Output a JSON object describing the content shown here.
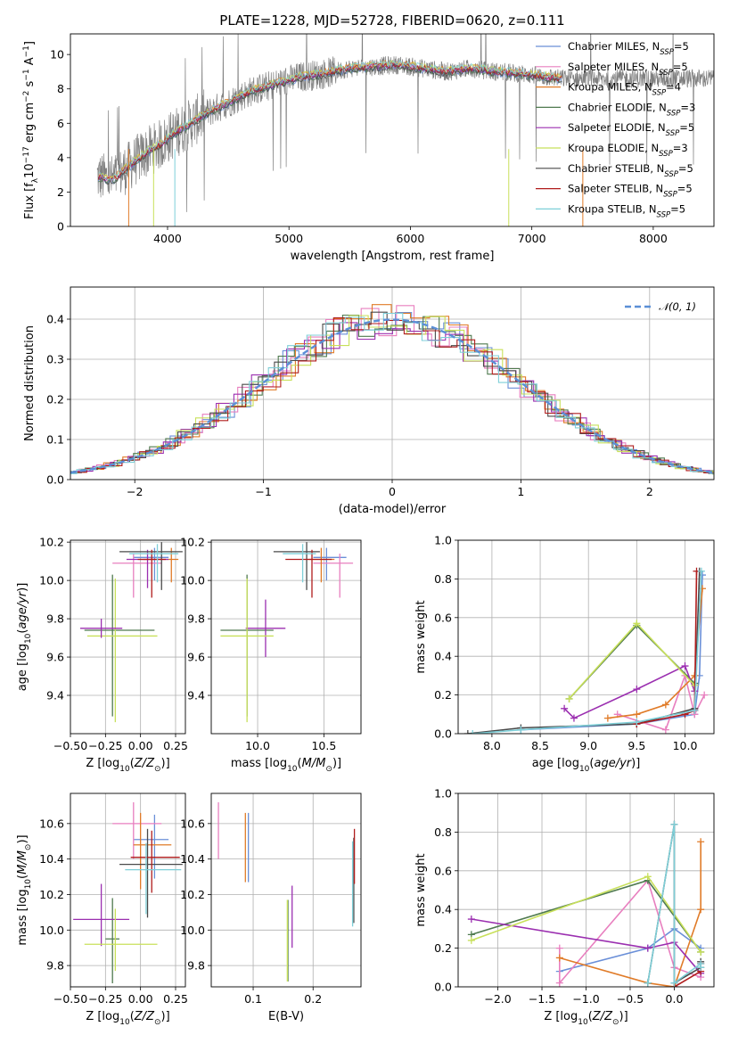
{
  "figure": {
    "title": "PLATE=1228, MJD=52728, FIBERID=0620, z=0.111"
  },
  "colors": {
    "Chabrier MILES": "#6a8fd8",
    "Salpeter MILES": "#e87fbf",
    "Kroupa MILES": "#e07b28",
    "Chabrier ELODIE": "#4f7a4f",
    "Salpeter ELODIE": "#9b2fb0",
    "Kroupa ELODIE": "#c8e05a",
    "Chabrier STELIB": "#4a4a4a",
    "Salpeter STELIB": "#b01c1c",
    "Kroupa STELIB": "#7ecfd8",
    "data": "#808080",
    "normal": "#5b8fd6"
  },
  "chart_data": [
    {
      "id": "spectrum",
      "type": "line",
      "xlabel": "wavelength [Angstrom, rest frame]",
      "ylabel": "Flux [f_λ10^-17 erg cm^-2 s^-1 A^-1]",
      "xlim": [
        3200,
        8500
      ],
      "ylim": [
        0,
        11.2
      ],
      "xticks": [
        4000,
        5000,
        6000,
        7000,
        8000
      ],
      "yticks": [
        0,
        2,
        4,
        6,
        8,
        10
      ],
      "legend_position": "top-right",
      "legend": [
        {
          "model": "Chabrier MILES",
          "nssp": "5"
        },
        {
          "model": "Salpeter MILES",
          "nssp": "5"
        },
        {
          "model": "Kroupa MILES",
          "nssp": "4"
        },
        {
          "model": "Chabrier ELODIE",
          "nssp": "3"
        },
        {
          "model": "Salpeter ELODIE",
          "nssp": "5"
        },
        {
          "model": "Kroupa ELODIE",
          "nssp": "3"
        },
        {
          "model": "Chabrier STELIB",
          "nssp": "5"
        },
        {
          "model": "Salpeter STELIB",
          "nssp": "5"
        },
        {
          "model": "Kroupa STELIB",
          "nssp": "5"
        }
      ],
      "continuum": {
        "x": [
          3420,
          3550,
          3650,
          3750,
          3850,
          3950,
          4050,
          4150,
          4300,
          4500,
          4700,
          4900,
          5100,
          5300,
          5500,
          5700,
          5900,
          6100,
          6300,
          6500,
          6700,
          6900,
          7100,
          7250
        ],
        "y": [
          2.9,
          2.7,
          3.3,
          3.9,
          4.4,
          4.8,
          5.4,
          5.8,
          6.5,
          7.2,
          7.9,
          8.3,
          8.7,
          8.9,
          9.2,
          9.3,
          9.4,
          9.2,
          9.0,
          9.2,
          9.0,
          8.9,
          8.7,
          8.6
        ]
      }
    },
    {
      "id": "residuals",
      "type": "line",
      "xlabel": "(data-model)/error",
      "ylabel": "Normed distribution",
      "xlim": [
        -2.5,
        2.5
      ],
      "ylim": [
        0,
        0.48
      ],
      "xticks": [
        -2,
        -1,
        0,
        1,
        2
      ],
      "yticks": [
        0.0,
        0.1,
        0.2,
        0.3,
        0.4
      ],
      "legend_position": "top-right",
      "legend_label": "N(0,1)"
    },
    {
      "id": "age_vs_Z",
      "type": "scatter",
      "xlabel": "Z [log10(Z/Z⊙)]",
      "ylabel": "age [log10(age/yr)]",
      "xlim": [
        -0.5,
        0.32
      ],
      "ylim": [
        9.2,
        10.21
      ],
      "xticks": [
        -0.5,
        -0.25,
        0.0,
        0.25
      ],
      "yticks": [
        9.4,
        9.6,
        9.8,
        10.0,
        10.2
      ],
      "points": [
        {
          "model": "Chabrier MILES",
          "x": 0.1,
          "xerr": [
            0.15,
            0.1
          ],
          "y": 10.12,
          "yerr": [
            0.12,
            0.05
          ]
        },
        {
          "model": "Salpeter MILES",
          "x": -0.05,
          "xerr": [
            0.15,
            0.2
          ],
          "y": 10.09,
          "yerr": [
            0.18,
            0.05
          ]
        },
        {
          "model": "Kroupa MILES",
          "x": 0.22,
          "xerr": [
            0.2,
            0.05
          ],
          "y": 10.11,
          "yerr": [
            0.12,
            0.06
          ]
        },
        {
          "model": "Chabrier ELODIE",
          "x": -0.2,
          "xerr": [
            0.2,
            0.3
          ],
          "y": 9.74,
          "yerr": [
            0.45,
            0.29
          ]
        },
        {
          "model": "Salpeter ELODIE",
          "x": 0.05,
          "xerr": [
            0.15,
            0.15
          ],
          "y": 10.11,
          "yerr": [
            0.15,
            0.05
          ]
        },
        {
          "model": "Kroupa ELODIE",
          "x": -0.18,
          "xerr": [
            0.2,
            0.3
          ],
          "y": 9.71,
          "yerr": [
            0.45,
            0.3
          ]
        },
        {
          "model": "Chabrier STELIB",
          "x": 0.15,
          "xerr": [
            0.3,
            0.15
          ],
          "y": 10.15,
          "yerr": [
            0.2,
            0.05
          ]
        },
        {
          "model": "Salpeter STELIB",
          "x": 0.08,
          "xerr": [
            0.1,
            0.1
          ],
          "y": 10.11,
          "yerr": [
            0.2,
            0.05
          ]
        },
        {
          "model": "Kroupa STELIB",
          "x": 0.12,
          "xerr": [
            0.2,
            0.15
          ],
          "y": 10.14,
          "yerr": [
            0.15,
            0.05
          ]
        },
        {
          "model": "Salpeter ELODIE",
          "x": -0.28,
          "xerr": [
            0.15,
            0.15
          ],
          "y": 9.75,
          "yerr": [
            0.05,
            0.05
          ]
        }
      ]
    },
    {
      "id": "age_vs_mass",
      "type": "scatter",
      "xlabel": "mass [log10(M/M⊙)]",
      "xlim": [
        9.65,
        10.78
      ],
      "ylim": [
        9.2,
        10.21
      ],
      "xticks": [
        10.0,
        10.5
      ],
      "yticks": [
        9.4,
        9.6,
        9.8,
        10.0,
        10.2
      ],
      "points": [
        {
          "model": "Chabrier MILES",
          "x": 10.52,
          "xerr": [
            0.1,
            0.15
          ],
          "y": 10.12,
          "yerr": [
            0.12,
            0.05
          ]
        },
        {
          "model": "Salpeter MILES",
          "x": 10.62,
          "xerr": [
            0.2,
            0.1
          ],
          "y": 10.09,
          "yerr": [
            0.18,
            0.05
          ]
        },
        {
          "model": "Kroupa MILES",
          "x": 10.48,
          "xerr": [
            0.1,
            0.1
          ],
          "y": 10.11,
          "yerr": [
            0.12,
            0.06
          ]
        },
        {
          "model": "Chabrier ELODIE",
          "x": 9.92,
          "xerr": [
            0.2,
            0.2
          ],
          "y": 9.74,
          "yerr": [
            0.45,
            0.29
          ]
        },
        {
          "model": "Salpeter ELODIE",
          "x": 10.06,
          "xerr": [
            0.15,
            0.15
          ],
          "y": 9.75,
          "yerr": [
            0.15,
            0.15
          ]
        },
        {
          "model": "Kroupa ELODIE",
          "x": 9.92,
          "xerr": [
            0.2,
            0.2
          ],
          "y": 9.71,
          "yerr": [
            0.45,
            0.3
          ]
        },
        {
          "model": "Chabrier STELIB",
          "x": 10.37,
          "xerr": [
            0.25,
            0.1
          ],
          "y": 10.15,
          "yerr": [
            0.2,
            0.05
          ]
        },
        {
          "model": "Salpeter STELIB",
          "x": 10.41,
          "xerr": [
            0.2,
            0.15
          ],
          "y": 10.11,
          "yerr": [
            0.2,
            0.05
          ]
        },
        {
          "model": "Kroupa STELIB",
          "x": 10.34,
          "xerr": [
            0.15,
            0.1
          ],
          "y": 10.14,
          "yerr": [
            0.15,
            0.05
          ]
        }
      ]
    },
    {
      "id": "weight_vs_age",
      "type": "line",
      "xlabel": "age [log10(age/yr)]",
      "ylabel": "mass weight",
      "xlim": [
        7.65,
        10.3
      ],
      "ylim": [
        0,
        1
      ],
      "xticks": [
        8.0,
        8.5,
        9.0,
        9.5,
        10.0
      ],
      "yticks": [
        0.0,
        0.2,
        0.4,
        0.6,
        0.8,
        1.0
      ],
      "series": [
        {
          "model": "Chabrier MILES",
          "x": [
            8.3,
            9.5,
            10.1,
            10.15,
            10.18
          ],
          "y": [
            0.02,
            0.05,
            0.1,
            0.3,
            0.82
          ]
        },
        {
          "model": "Salpeter MILES",
          "x": [
            9.3,
            9.8,
            10.0,
            10.1,
            10.2
          ],
          "y": [
            0.1,
            0.02,
            0.3,
            0.1,
            0.2
          ]
        },
        {
          "model": "Kroupa MILES",
          "x": [
            9.2,
            9.5,
            9.8,
            10.1,
            10.18
          ],
          "y": [
            0.08,
            0.1,
            0.15,
            0.3,
            0.75
          ]
        },
        {
          "model": "Chabrier ELODIE",
          "x": [
            8.8,
            9.5,
            10.1
          ],
          "y": [
            0.18,
            0.56,
            0.26
          ]
        },
        {
          "model": "Salpeter ELODIE",
          "x": [
            8.75,
            8.85,
            9.5,
            10.0,
            10.1
          ],
          "y": [
            0.13,
            0.08,
            0.23,
            0.35,
            0.22
          ]
        },
        {
          "model": "Kroupa ELODIE",
          "x": [
            8.8,
            9.5,
            10.1
          ],
          "y": [
            0.18,
            0.57,
            0.25
          ]
        },
        {
          "model": "Chabrier STELIB",
          "x": [
            7.75,
            8.3,
            9.5,
            10.1,
            10.15
          ],
          "y": [
            0.0,
            0.03,
            0.05,
            0.13,
            0.84
          ]
        },
        {
          "model": "Salpeter STELIB",
          "x": [
            9.5,
            10.0,
            10.1,
            10.12
          ],
          "y": [
            0.05,
            0.1,
            0.12,
            0.84
          ]
        },
        {
          "model": "Kroupa STELIB",
          "x": [
            7.8,
            8.3,
            9.5,
            10.1,
            10.17
          ],
          "y": [
            0.0,
            0.02,
            0.06,
            0.12,
            0.84
          ]
        }
      ]
    },
    {
      "id": "mass_vs_Z",
      "type": "scatter",
      "xlabel": "Z [log10(Z/Z⊙)]",
      "ylabel": "mass [log10(M/M⊙)]",
      "xlim": [
        -0.5,
        0.32
      ],
      "ylim": [
        9.68,
        10.77
      ],
      "xticks": [
        -0.5,
        -0.25,
        0.0,
        0.25
      ],
      "yticks": [
        9.8,
        10.0,
        10.2,
        10.4,
        10.6
      ],
      "points": [
        {
          "model": "Chabrier MILES",
          "x": 0.1,
          "xerr": [
            0.15,
            0.1
          ],
          "y": 10.51,
          "yerr": [
            0.22,
            0.14
          ]
        },
        {
          "model": "Salpeter MILES",
          "x": -0.05,
          "xerr": [
            0.15,
            0.2
          ],
          "y": 10.6,
          "yerr": [
            0.2,
            0.12
          ]
        },
        {
          "model": "Kroupa MILES",
          "x": 0.0,
          "xerr": [
            0.05,
            0.22
          ],
          "y": 10.48,
          "yerr": [
            0.25,
            0.18
          ]
        },
        {
          "model": "Chabrier ELODIE",
          "x": -0.2,
          "xerr": [
            0.05,
            0.05
          ],
          "y": 9.95,
          "yerr": [
            0.25,
            0.23
          ]
        },
        {
          "model": "Salpeter ELODIE",
          "x": -0.28,
          "xerr": [
            0.2,
            0.2
          ],
          "y": 10.06,
          "yerr": [
            0.15,
            0.2
          ]
        },
        {
          "model": "Kroupa ELODIE",
          "x": -0.18,
          "xerr": [
            0.22,
            0.3
          ],
          "y": 9.92,
          "yerr": [
            0.15,
            0.2
          ]
        },
        {
          "model": "Chabrier STELIB",
          "x": 0.05,
          "xerr": [
            0.2,
            0.25
          ],
          "y": 10.37,
          "yerr": [
            0.3,
            0.2
          ]
        },
        {
          "model": "Salpeter STELIB",
          "x": 0.08,
          "xerr": [
            0.15,
            0.2
          ],
          "y": 10.41,
          "yerr": [
            0.2,
            0.15
          ]
        },
        {
          "model": "Kroupa STELIB",
          "x": 0.04,
          "xerr": [
            0.15,
            0.25
          ],
          "y": 10.34,
          "yerr": [
            0.25,
            0.15
          ]
        }
      ]
    },
    {
      "id": "mass_vs_ebv",
      "type": "scatter",
      "xlabel": "E(B-V)",
      "xlim": [
        0.03,
        0.28
      ],
      "ylim": [
        9.68,
        10.77
      ],
      "xticks": [
        0.1,
        0.2
      ],
      "yticks": [
        9.8,
        10.0,
        10.2,
        10.4,
        10.6
      ],
      "points": [
        {
          "model": "Chabrier MILES",
          "x": 0.092,
          "y": 10.47,
          "yerr": [
            0.2,
            0.19
          ]
        },
        {
          "model": "Salpeter MILES",
          "x": 0.042,
          "y": 10.56,
          "yerr": [
            0.16,
            0.16
          ]
        },
        {
          "model": "Kroupa MILES",
          "x": 0.087,
          "y": 10.47,
          "yerr": [
            0.2,
            0.19
          ]
        },
        {
          "model": "Chabrier ELODIE",
          "x": 0.158,
          "y": 9.95,
          "yerr": [
            0.24,
            0.22
          ]
        },
        {
          "model": "Salpeter ELODIE",
          "x": 0.165,
          "y": 10.07,
          "yerr": [
            0.17,
            0.18
          ]
        },
        {
          "model": "Kroupa ELODIE",
          "x": 0.157,
          "y": 9.95,
          "yerr": [
            0.24,
            0.22
          ]
        },
        {
          "model": "Chabrier STELIB",
          "x": 0.268,
          "y": 10.22,
          "yerr": [
            0.18,
            0.3
          ]
        },
        {
          "model": "Salpeter STELIB",
          "x": 0.269,
          "y": 10.41,
          "yerr": [
            0.15,
            0.16
          ]
        },
        {
          "model": "Kroupa STELIB",
          "x": 0.266,
          "y": 10.2,
          "yerr": [
            0.18,
            0.3
          ]
        }
      ]
    },
    {
      "id": "weight_vs_Z",
      "type": "line",
      "xlabel": "Z [log10(Z/Z⊙)]",
      "ylabel": "mass weight",
      "xlim": [
        -2.45,
        0.45
      ],
      "ylim": [
        0,
        1
      ],
      "xticks": [
        -2.0,
        -1.5,
        -1.0,
        -0.5,
        0.0
      ],
      "yticks": [
        0.0,
        0.2,
        0.4,
        0.6,
        0.8,
        1.0
      ],
      "series": [
        {
          "model": "Chabrier MILES",
          "x": [
            -1.3,
            -0.3,
            0.0,
            0.3
          ],
          "y": [
            0.08,
            0.2,
            0.3,
            0.2
          ]
        },
        {
          "model": "Salpeter MILES",
          "x": [
            -1.3,
            -1.3,
            -0.3,
            0.0,
            0.3
          ],
          "y": [
            0.2,
            0.02,
            0.55,
            0.1,
            0.05
          ]
        },
        {
          "model": "Kroupa MILES",
          "x": [
            -1.3,
            -0.3,
            0.0,
            0.3,
            0.3
          ],
          "y": [
            0.15,
            0.02,
            0.0,
            0.4,
            0.75
          ]
        },
        {
          "model": "Chabrier ELODIE",
          "x": [
            -2.3,
            -0.3,
            0.3
          ],
          "y": [
            0.27,
            0.55,
            0.18
          ]
        },
        {
          "model": "Salpeter ELODIE",
          "x": [
            -2.3,
            -0.3,
            0.0,
            0.3
          ],
          "y": [
            0.35,
            0.2,
            0.23,
            0.07
          ]
        },
        {
          "model": "Kroupa ELODIE",
          "x": [
            -2.3,
            -0.3,
            0.3
          ],
          "y": [
            0.24,
            0.57,
            0.18
          ]
        },
        {
          "model": "Chabrier STELIB",
          "x": [
            -0.3,
            0.0,
            0.0,
            0.3,
            0.3
          ],
          "y": [
            0.02,
            0.84,
            0.02,
            0.1,
            0.13
          ]
        },
        {
          "model": "Salpeter STELIB",
          "x": [
            0.0,
            0.3,
            0.3
          ],
          "y": [
            0.0,
            0.08,
            0.12
          ]
        },
        {
          "model": "Kroupa STELIB",
          "x": [
            -0.3,
            0.0,
            0.0,
            0.3,
            0.3
          ],
          "y": [
            0.02,
            0.84,
            0.02,
            0.12,
            0.1
          ]
        }
      ]
    }
  ]
}
